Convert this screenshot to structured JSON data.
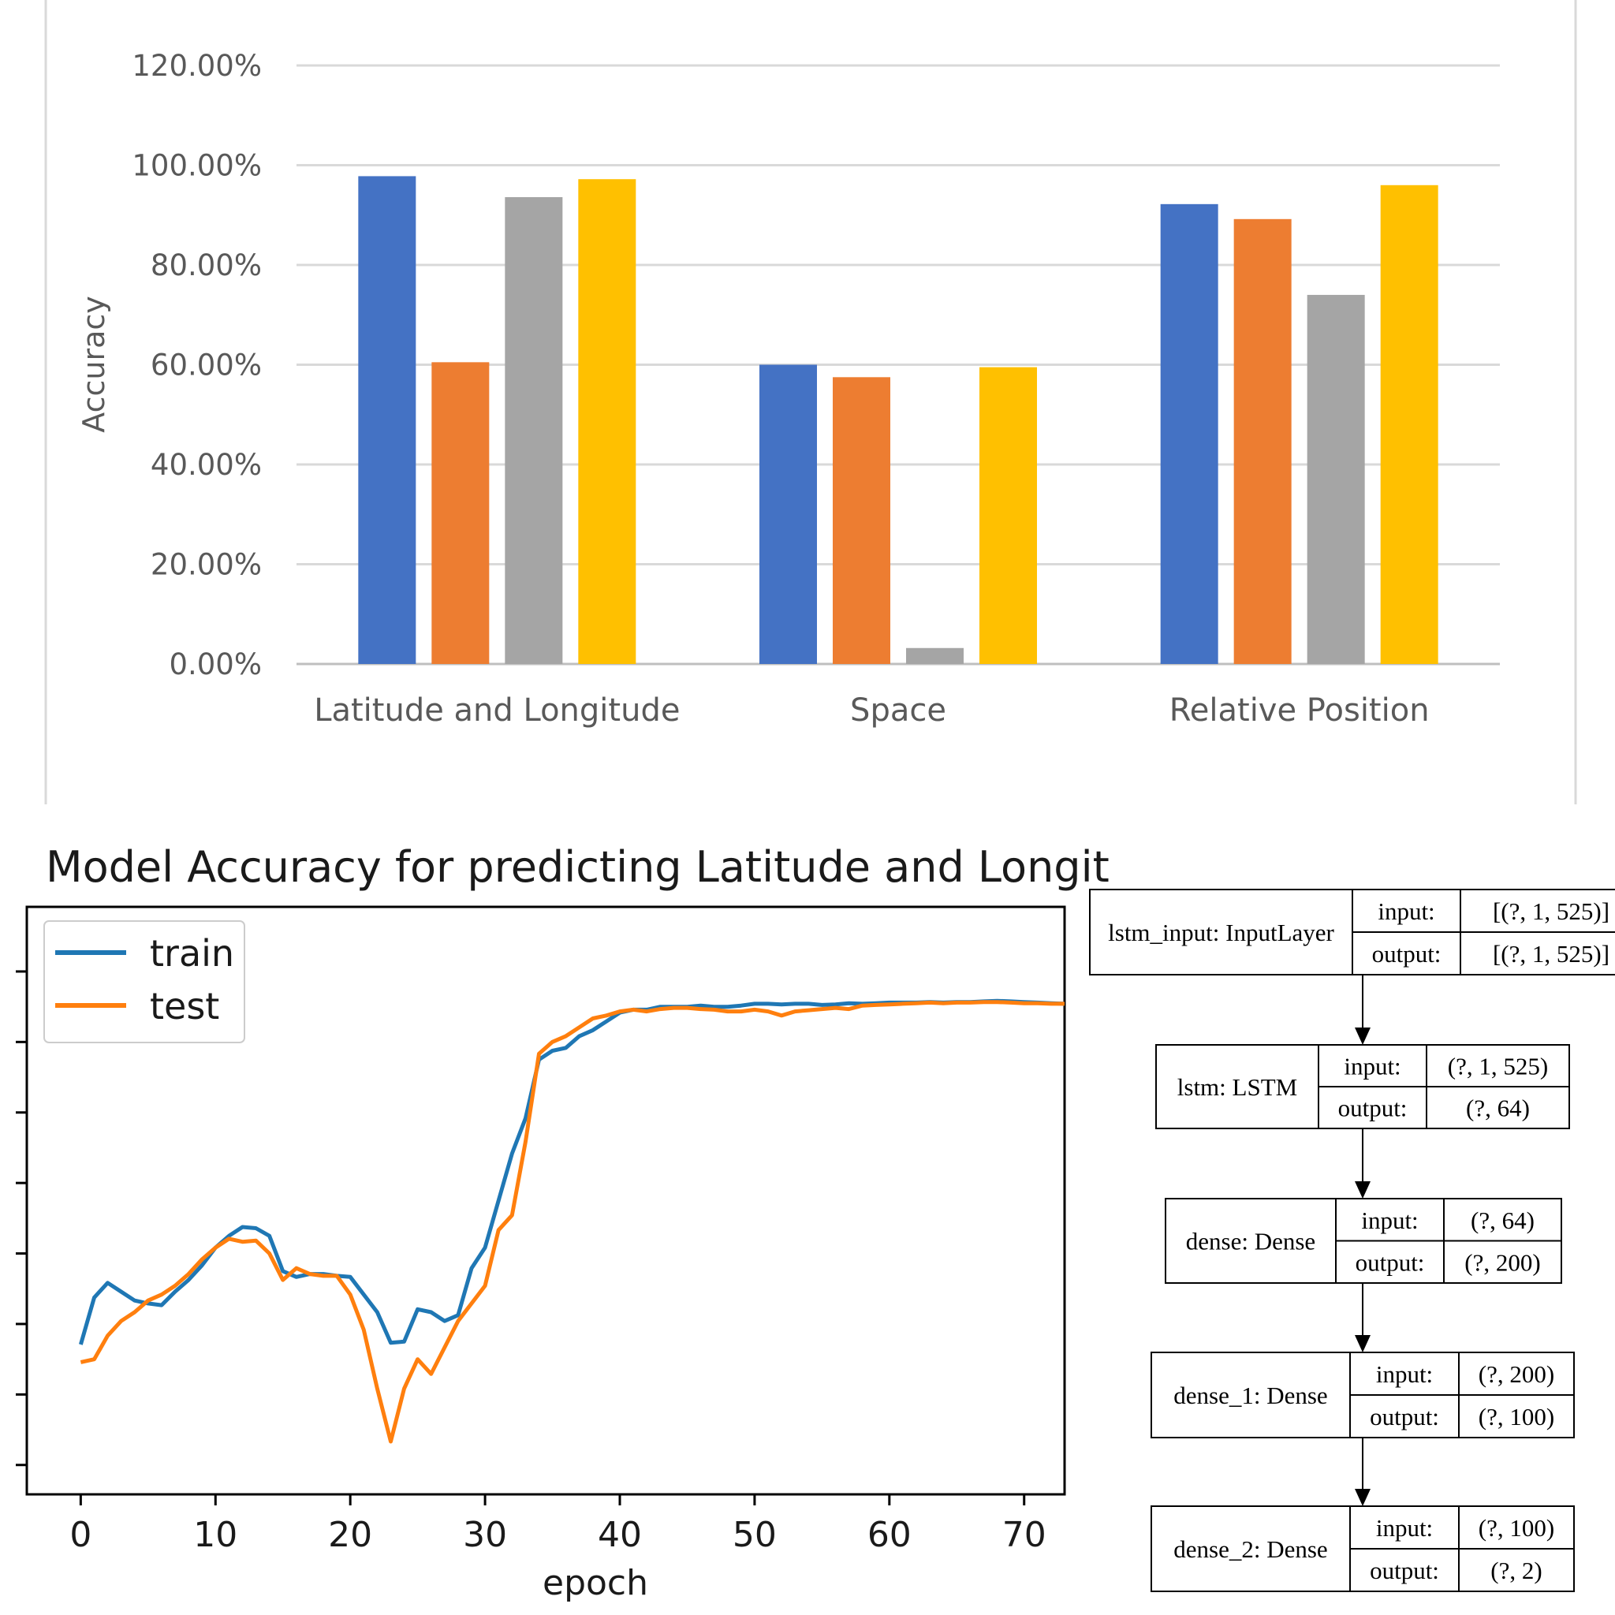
{
  "chart_data": [
    {
      "type": "bar",
      "title": "",
      "ylabel": "Accuracy",
      "xlabel": "",
      "ylim": [
        0,
        120
      ],
      "yticks": [
        "0.00%",
        "20.00%",
        "40.00%",
        "60.00%",
        "80.00%",
        "100.00%",
        "120.00%"
      ],
      "categories": [
        "Latitude and Longitude",
        "Space",
        "Relative Position"
      ],
      "grid": true,
      "legend": "none",
      "series": [
        {
          "values": [
            97.8,
            60.0,
            92.2
          ],
          "color": "#4472c4"
        },
        {
          "values": [
            60.5,
            57.5,
            89.2
          ],
          "color": "#ed7d31"
        },
        {
          "values": [
            93.6,
            3.2,
            74.0
          ],
          "color": "#a5a5a5"
        },
        {
          "values": [
            97.2,
            59.5,
            96.0
          ],
          "color": "#ffc000"
        }
      ]
    },
    {
      "type": "line",
      "title": "Model Accuracy for predicting Latitude and Longit",
      "xlabel": "epoch",
      "ylabel": "",
      "xlim": [
        -4,
        73
      ],
      "ylim": [
        0,
        1
      ],
      "xticks": [
        "0",
        "10",
        "20",
        "30",
        "40",
        "50",
        "60",
        "70"
      ],
      "legend": "upper-left",
      "series": [
        {
          "name": "train",
          "color": "#1f77b4",
          "x": [
            0,
            1,
            2,
            3,
            4,
            5,
            6,
            7,
            8,
            9,
            10,
            11,
            12,
            13,
            14,
            15,
            16,
            17,
            18,
            19,
            20,
            21,
            22,
            23,
            24,
            25,
            26,
            27,
            28,
            29,
            30,
            31,
            32,
            33,
            34,
            35,
            36,
            37,
            38,
            39,
            40,
            41,
            42,
            43,
            44,
            45,
            46,
            47,
            48,
            49,
            50,
            51,
            52,
            53,
            54,
            55,
            56,
            57,
            58,
            59,
            60,
            61,
            62,
            63,
            64,
            65,
            66,
            67,
            68,
            69,
            70,
            71,
            72,
            73
          ],
          "y": [
            0.255,
            0.335,
            0.36,
            0.345,
            0.33,
            0.325,
            0.322,
            0.345,
            0.365,
            0.39,
            0.42,
            0.44,
            0.455,
            0.453,
            0.44,
            0.38,
            0.37,
            0.375,
            0.375,
            0.372,
            0.37,
            0.34,
            0.31,
            0.258,
            0.26,
            0.315,
            0.31,
            0.295,
            0.305,
            0.385,
            0.42,
            0.5,
            0.58,
            0.64,
            0.74,
            0.755,
            0.76,
            0.78,
            0.79,
            0.805,
            0.82,
            0.825,
            0.825,
            0.83,
            0.83,
            0.83,
            0.832,
            0.83,
            0.83,
            0.832,
            0.835,
            0.835,
            0.834,
            0.835,
            0.835,
            0.833,
            0.834,
            0.836,
            0.835,
            0.836,
            0.837,
            0.837,
            0.837,
            0.838,
            0.837,
            0.838,
            0.838,
            0.839,
            0.84,
            0.839,
            0.838,
            0.837,
            0.836,
            0.835
          ]
        },
        {
          "name": "test",
          "color": "#ff7f0e",
          "x": [
            0,
            1,
            2,
            3,
            4,
            5,
            6,
            7,
            8,
            9,
            10,
            11,
            12,
            13,
            14,
            15,
            16,
            17,
            18,
            19,
            20,
            21,
            22,
            23,
            24,
            25,
            26,
            27,
            28,
            29,
            30,
            31,
            32,
            33,
            34,
            35,
            36,
            37,
            38,
            39,
            40,
            41,
            42,
            43,
            44,
            45,
            46,
            47,
            48,
            49,
            50,
            51,
            52,
            53,
            54,
            55,
            56,
            57,
            58,
            59,
            60,
            61,
            62,
            63,
            64,
            65,
            66,
            67,
            68,
            69,
            70,
            71,
            72,
            73
          ],
          "y": [
            0.225,
            0.23,
            0.27,
            0.295,
            0.31,
            0.33,
            0.34,
            0.355,
            0.375,
            0.4,
            0.42,
            0.435,
            0.43,
            0.432,
            0.41,
            0.365,
            0.385,
            0.375,
            0.372,
            0.372,
            0.34,
            0.28,
            0.18,
            0.09,
            0.18,
            0.23,
            0.205,
            0.25,
            0.295,
            0.325,
            0.355,
            0.45,
            0.475,
            0.6,
            0.75,
            0.77,
            0.78,
            0.795,
            0.81,
            0.815,
            0.822,
            0.825,
            0.822,
            0.826,
            0.828,
            0.828,
            0.826,
            0.825,
            0.822,
            0.822,
            0.825,
            0.822,
            0.815,
            0.822,
            0.824,
            0.826,
            0.828,
            0.826,
            0.832,
            0.833,
            0.834,
            0.835,
            0.836,
            0.837,
            0.836,
            0.837,
            0.837,
            0.838,
            0.838,
            0.837,
            0.836,
            0.836,
            0.835,
            0.835
          ]
        }
      ]
    }
  ],
  "diagram": {
    "nodes": [
      {
        "name": "lstm_input: InputLayer",
        "input_label": "input:",
        "input": "[(?, 1, 525)]",
        "output_label": "output:",
        "output": "[(?, 1, 525)]"
      },
      {
        "name": "lstm: LSTM",
        "input_label": "input:",
        "input": "(?, 1, 525)",
        "output_label": "output:",
        "output": "(?, 64)"
      },
      {
        "name": "dense: Dense",
        "input_label": "input:",
        "input": "(?, 64)",
        "output_label": "output:",
        "output": "(?, 200)"
      },
      {
        "name": "dense_1: Dense",
        "input_label": "input:",
        "input": "(?, 200)",
        "output_label": "output:",
        "output": "(?, 100)"
      },
      {
        "name": "dense_2: Dense",
        "input_label": "input:",
        "input": "(?, 100)",
        "output_label": "output:",
        "output": "(?, 2)"
      }
    ]
  }
}
